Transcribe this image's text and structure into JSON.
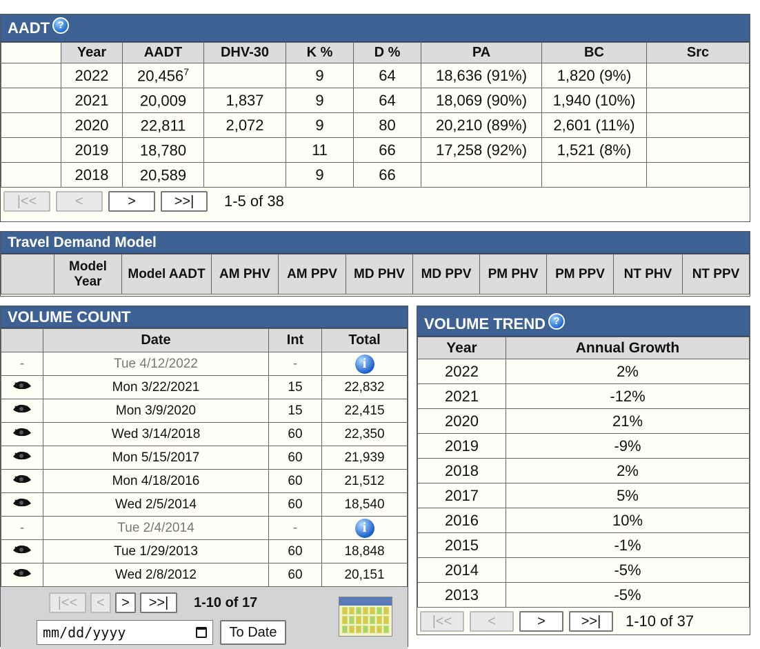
{
  "aadt": {
    "title": "AADT",
    "help_glyph": "?",
    "columns": [
      "Year",
      "AADT",
      "DHV-30",
      "K %",
      "D %",
      "PA",
      "BC",
      "Src"
    ],
    "rows": [
      {
        "year": "2022",
        "aadt": "20,456",
        "aadt_sup": "7",
        "dhv": "",
        "k": "9",
        "d": "64",
        "pa": "18,636 (91%)",
        "bc": "1,820 (9%)",
        "src": ""
      },
      {
        "year": "2021",
        "aadt": "20,009",
        "aadt_sup": "",
        "dhv": "1,837",
        "k": "9",
        "d": "64",
        "pa": "18,069 (90%)",
        "bc": "1,940 (10%)",
        "src": ""
      },
      {
        "year": "2020",
        "aadt": "22,811",
        "aadt_sup": "",
        "dhv": "2,072",
        "k": "9",
        "d": "80",
        "pa": "20,210 (89%)",
        "bc": "2,601 (11%)",
        "src": ""
      },
      {
        "year": "2019",
        "aadt": "18,780",
        "aadt_sup": "",
        "dhv": "",
        "k": "11",
        "d": "66",
        "pa": "17,258 (92%)",
        "bc": "1,521 (8%)",
        "src": ""
      },
      {
        "year": "2018",
        "aadt": "20,589",
        "aadt_sup": "",
        "dhv": "",
        "k": "9",
        "d": "66",
        "pa": "",
        "bc": "",
        "src": ""
      }
    ],
    "pager": {
      "first": "|<<",
      "prev": "<",
      "next": ">",
      "last": ">>|",
      "range": "1-5 of 38"
    }
  },
  "tdm": {
    "title": "Travel Demand Model",
    "columns": [
      "Model Year",
      "Model AADT",
      "AM PHV",
      "AM PPV",
      "MD PHV",
      "MD PPV",
      "PM PHV",
      "PM PPV",
      "NT PHV",
      "NT PPV"
    ]
  },
  "volume_count": {
    "title": "VOLUME COUNT",
    "columns": [
      "Date",
      "Int",
      "Total"
    ],
    "rows": [
      {
        "icon": "-",
        "date": "Tue 4/12/2022",
        "int": "-",
        "total": "",
        "info": true,
        "muted": true
      },
      {
        "icon": "eye",
        "date": "Mon 3/22/2021",
        "int": "15",
        "total": "22,832",
        "info": false,
        "muted": false
      },
      {
        "icon": "eye",
        "date": "Mon 3/9/2020",
        "int": "15",
        "total": "22,415",
        "info": false,
        "muted": false
      },
      {
        "icon": "eye",
        "date": "Wed 3/14/2018",
        "int": "60",
        "total": "22,350",
        "info": false,
        "muted": false
      },
      {
        "icon": "eye",
        "date": "Mon 5/15/2017",
        "int": "60",
        "total": "21,939",
        "info": false,
        "muted": false
      },
      {
        "icon": "eye",
        "date": "Mon 4/18/2016",
        "int": "60",
        "total": "21,512",
        "info": false,
        "muted": false
      },
      {
        "icon": "eye",
        "date": "Wed 2/5/2014",
        "int": "60",
        "total": "18,540",
        "info": false,
        "muted": false
      },
      {
        "icon": "-",
        "date": "Tue 2/4/2014",
        "int": "-",
        "total": "",
        "info": true,
        "muted": true
      },
      {
        "icon": "eye",
        "date": "Tue 1/29/2013",
        "int": "60",
        "total": "18,848",
        "info": false,
        "muted": false
      },
      {
        "icon": "eye",
        "date": "Wed 2/8/2012",
        "int": "60",
        "total": "20,151",
        "info": false,
        "muted": false
      }
    ],
    "info_glyph": "i",
    "pager": {
      "first": "|<<",
      "prev": "<",
      "next": ">",
      "last": ">>|",
      "range": "1-10 of 17"
    },
    "date_placeholder": "mm/dd/yyyy",
    "to_date_label": "To Date"
  },
  "volume_trend": {
    "title": "VOLUME TREND",
    "help_glyph": "?",
    "columns": [
      "Year",
      "Annual Growth"
    ],
    "rows": [
      {
        "year": "2022",
        "growth": "2%"
      },
      {
        "year": "2021",
        "growth": "-12%"
      },
      {
        "year": "2020",
        "growth": "21%"
      },
      {
        "year": "2019",
        "growth": "-9%"
      },
      {
        "year": "2018",
        "growth": "2%"
      },
      {
        "year": "2017",
        "growth": "5%"
      },
      {
        "year": "2016",
        "growth": "10%"
      },
      {
        "year": "2015",
        "growth": "-1%"
      },
      {
        "year": "2014",
        "growth": "-5%"
      },
      {
        "year": "2013",
        "growth": "-5%"
      }
    ],
    "pager": {
      "first": "|<<",
      "prev": "<",
      "next": ">",
      "last": ">>|",
      "range": "1-10 of 37"
    }
  },
  "colors": {
    "header_bg": "#3e6193",
    "table_header_bg": "#dcdcdc",
    "row_bg": "#fffff5"
  },
  "icons": {
    "help": "help-circle-icon",
    "eye": "eye-icon",
    "info": "info-icon",
    "calendar": "calendar-icon"
  }
}
